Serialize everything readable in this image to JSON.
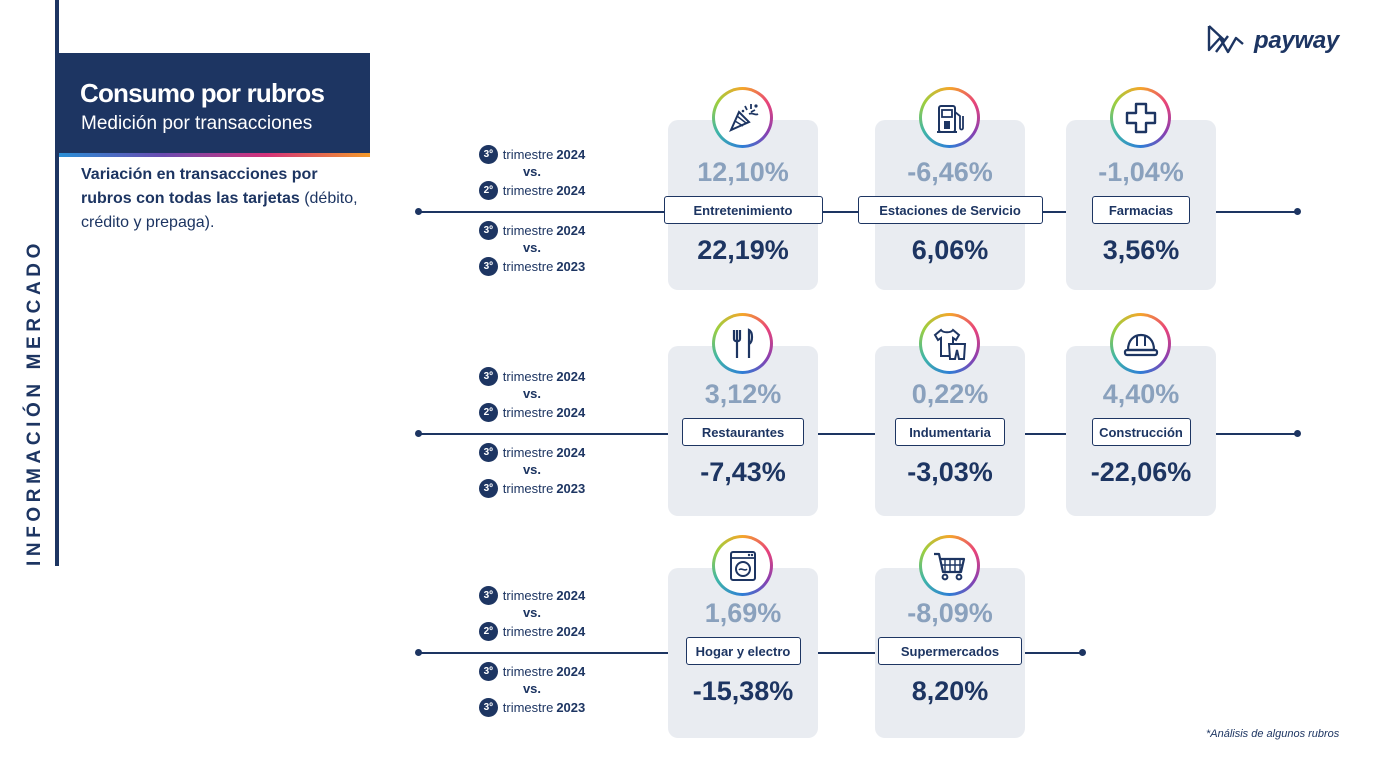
{
  "sidebar": {
    "label": "INFORMACIÓN MERCADO"
  },
  "header": {
    "title": "Consumo por rubros",
    "subtitle": "Medición por transacciones"
  },
  "description": {
    "bold": "Variación en transacciones por rubros con todas las tarjetas",
    "normal": "(débito, crédito y prepaga)."
  },
  "logo": {
    "text": "payway"
  },
  "footnote": "*Análisis de algunos rubros",
  "periods": {
    "badge": "3º",
    "badge2": "2º",
    "trimestre": "trimestre",
    "vs": "vs.",
    "y2024": "2024",
    "y2023": "2023"
  },
  "categories": [
    {
      "name": "Entretenimiento",
      "icon": "party-icon",
      "q_vs_q": "12,10%",
      "y_vs_y": "22,19%"
    },
    {
      "name": "Estaciones de Servicio",
      "icon": "fuel-pump-icon",
      "q_vs_q": "-6,46%",
      "y_vs_y": "6,06%"
    },
    {
      "name": "Farmacias",
      "icon": "medical-cross-icon",
      "q_vs_q": "-1,04%",
      "y_vs_y": "3,56%"
    },
    {
      "name": "Restaurantes",
      "icon": "fork-knife-icon",
      "q_vs_q": "3,12%",
      "y_vs_y": "-7,43%"
    },
    {
      "name": "Indumentaria",
      "icon": "clothing-icon",
      "q_vs_q": "0,22%",
      "y_vs_y": "-3,03%"
    },
    {
      "name": "Construcción",
      "icon": "hard-hat-icon",
      "q_vs_q": "4,40%",
      "y_vs_y": "-22,06%"
    },
    {
      "name": "Hogar y electro",
      "icon": "washing-machine-icon",
      "q_vs_q": "1,69%",
      "y_vs_y": "-15,38%"
    },
    {
      "name": "Supermercados",
      "icon": "shopping-cart-icon",
      "q_vs_q": "-8,09%",
      "y_vs_y": "8,20%"
    }
  ],
  "colors": {
    "navy": "#1d3562",
    "muted_value": "#8aa1bd",
    "card_bg": "#e9ecf1"
  }
}
